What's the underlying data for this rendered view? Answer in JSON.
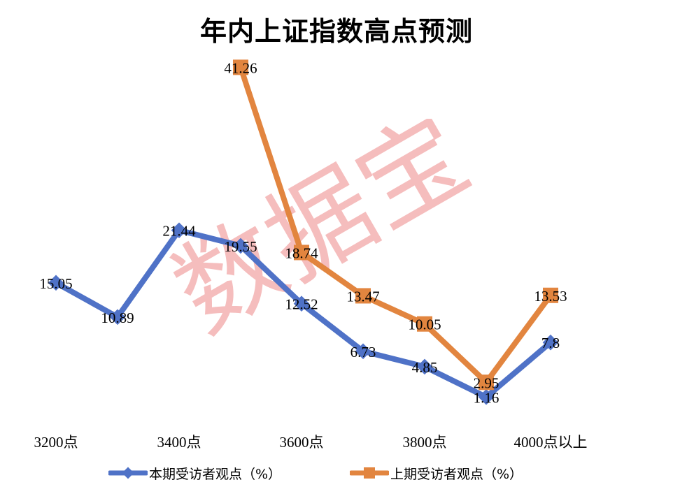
{
  "title": "年内上证指数高点预测",
  "watermark": "数据宝",
  "colors": {
    "current_series": "#4f72c7",
    "previous_series": "#e2853f",
    "watermark": "#ef9a9a"
  },
  "axis": {
    "category_labels": [
      {
        "text": "3200点",
        "index": 0
      },
      {
        "text": "3400点",
        "index": 2
      },
      {
        "text": "3600点",
        "index": 4
      },
      {
        "text": "3800点",
        "index": 6
      },
      {
        "text": "4000点以上",
        "index": 8
      }
    ]
  },
  "legend": {
    "items": [
      {
        "label": "本期受访者观点（%）",
        "marker": "diamond",
        "color": "#4f72c7"
      },
      {
        "label": "上期受访者观点（%）",
        "marker": "square",
        "color": "#e2853f"
      }
    ]
  },
  "chart_data": {
    "type": "line",
    "title": "年内上证指数高点预测",
    "categories": [
      "3200点",
      "",
      "3400点",
      "",
      "3600点",
      "",
      "3800点",
      "",
      "4000点以上"
    ],
    "xlabel": "",
    "ylabel": "",
    "grid": false,
    "legend_position": "bottom",
    "series": [
      {
        "name": "本期受访者观点（%）",
        "marker": "diamond",
        "color": "#4f72c7",
        "values": [
          15.05,
          10.89,
          21.44,
          19.55,
          12.52,
          6.73,
          4.85,
          1.16,
          7.8
        ],
        "labels": [
          "15.05",
          "10.89",
          "21.44",
          "19.55",
          "12.52",
          "6.73",
          "4.85",
          "1.16",
          "7.8"
        ]
      },
      {
        "name": "上期受访者观点（%）",
        "marker": "square",
        "color": "#e2853f",
        "values": [
          null,
          null,
          null,
          41.26,
          18.74,
          13.47,
          10.05,
          2.95,
          13.53
        ],
        "labels": [
          "",
          "",
          "",
          "41.26",
          "18.74",
          "13.47",
          "10.05",
          "2.95",
          "13.53"
        ]
      }
    ]
  }
}
